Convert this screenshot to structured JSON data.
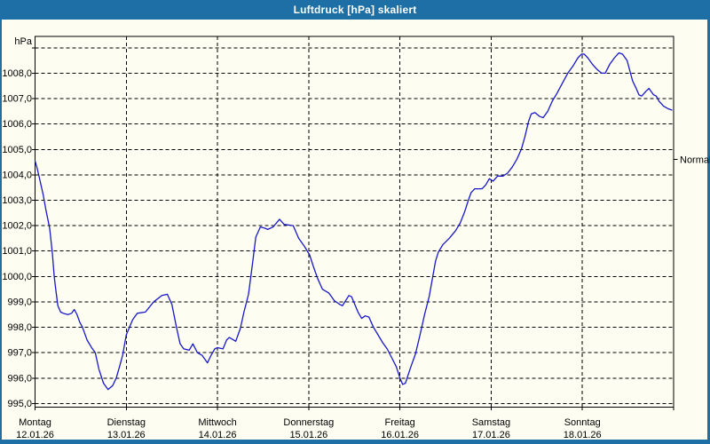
{
  "window": {
    "title": "Luftdruck [hPa] skaliert"
  },
  "colors": {
    "titlebar_bg": "#1d6fa5",
    "window_border": "#1d6fa5",
    "chart_bg": "#fdfdf2",
    "plot_bg": "#fdfdf2",
    "grid": "#000000",
    "text": "#000000",
    "line": "#1818c8"
  },
  "chart_data": {
    "type": "line",
    "title": "Luftdruck [hPa] skaliert",
    "ylabel": "hPa",
    "ylim": [
      995,
      1009
    ],
    "grid": "dashed",
    "y_ticks": [
      {
        "value": 995,
        "label": "995,0"
      },
      {
        "value": 996,
        "label": "996,0"
      },
      {
        "value": 997,
        "label": "997,0"
      },
      {
        "value": 998,
        "label": "998,0"
      },
      {
        "value": 999,
        "label": "999,0"
      },
      {
        "value": 1000,
        "label": "1000,0"
      },
      {
        "value": 1001,
        "label": "1001,0"
      },
      {
        "value": 1002,
        "label": "1002,0"
      },
      {
        "value": 1003,
        "label": "1003,0"
      },
      {
        "value": 1004,
        "label": "1004,0"
      },
      {
        "value": 1005,
        "label": "1005,0"
      },
      {
        "value": 1006,
        "label": "1006,0"
      },
      {
        "value": 1007,
        "label": "1007,0"
      },
      {
        "value": 1008,
        "label": "1008,0"
      }
    ],
    "unlabeled_top_gridline": 1009,
    "x_days": [
      {
        "name": "Montag",
        "date": "12.01.26"
      },
      {
        "name": "Dienstag",
        "date": "13.01.26"
      },
      {
        "name": "Mittwoch",
        "date": "14.01.26"
      },
      {
        "name": "Donnerstag",
        "date": "15.01.26"
      },
      {
        "name": "Freitag",
        "date": "16.01.26"
      },
      {
        "name": "Samstag",
        "date": "17.01.26"
      },
      {
        "name": "Sonntag",
        "date": "18.01.26"
      }
    ],
    "normal_marker": {
      "label": "Normal",
      "value": 1004.6
    },
    "series": [
      {
        "name": "Luftdruck",
        "x_unit": "days_from_monday_00h",
        "y_unit": "hPa",
        "x": [
          0.0,
          0.02,
          0.04,
          0.09,
          0.12,
          0.16,
          0.19,
          0.21,
          0.23,
          0.25,
          0.28,
          0.31,
          0.36,
          0.4,
          0.43,
          0.46,
          0.49,
          0.52,
          0.57,
          0.62,
          0.66,
          0.7,
          0.75,
          0.8,
          0.85,
          0.89,
          0.93,
          0.96,
          1.0,
          1.07,
          1.12,
          1.21,
          1.3,
          1.39,
          1.45,
          1.5,
          1.55,
          1.59,
          1.63,
          1.69,
          1.73,
          1.78,
          1.83,
          1.89,
          1.93,
          1.97,
          2.0,
          2.06,
          2.1,
          2.13,
          2.2,
          2.25,
          2.29,
          2.34,
          2.38,
          2.42,
          2.47,
          2.52,
          2.55,
          2.61,
          2.68,
          2.73,
          2.83,
          2.89,
          2.95,
          3.01,
          3.05,
          3.1,
          3.15,
          3.22,
          3.28,
          3.34,
          3.37,
          3.44,
          3.47,
          3.54,
          3.58,
          3.62,
          3.66,
          3.71,
          3.76,
          3.81,
          3.86,
          3.91,
          3.96,
          4.0,
          4.03,
          4.06,
          4.12,
          4.17,
          4.22,
          4.27,
          4.32,
          4.36,
          4.39,
          4.42,
          4.47,
          4.54,
          4.61,
          4.66,
          4.71,
          4.75,
          4.78,
          4.82,
          4.9,
          4.94,
          4.98,
          5.02,
          5.07,
          5.13,
          5.18,
          5.23,
          5.28,
          5.33,
          5.37,
          5.41,
          5.44,
          5.48,
          5.53,
          5.57,
          5.62,
          5.67,
          5.72,
          5.78,
          5.84,
          5.9,
          5.95,
          5.99,
          6.02,
          6.06,
          6.11,
          6.16,
          6.21,
          6.25,
          6.3,
          6.35,
          6.4,
          6.44,
          6.49,
          6.52,
          6.55,
          6.59,
          6.62,
          6.65,
          6.7,
          6.73,
          6.78,
          6.81,
          6.84,
          6.89,
          6.94,
          6.98
        ],
        "y": [
          1004.55,
          1004.3,
          1004.0,
          1003.2,
          1002.6,
          1001.9,
          1000.9,
          1000.0,
          999.4,
          998.85,
          998.6,
          998.55,
          998.5,
          998.55,
          998.7,
          998.5,
          998.2,
          998.0,
          997.5,
          997.2,
          997.0,
          996.35,
          995.8,
          995.55,
          995.7,
          996.0,
          996.5,
          996.9,
          997.7,
          998.3,
          998.55,
          998.6,
          999.0,
          999.25,
          999.3,
          998.9,
          998.0,
          997.35,
          997.15,
          997.1,
          997.35,
          997.0,
          996.9,
          996.6,
          996.9,
          997.15,
          997.2,
          997.15,
          997.5,
          997.6,
          997.45,
          997.95,
          998.6,
          999.3,
          1000.4,
          1001.55,
          1001.95,
          1001.9,
          1001.85,
          1001.95,
          1002.25,
          1002.05,
          1002.0,
          1001.5,
          1001.2,
          1000.85,
          1000.4,
          999.9,
          999.5,
          999.35,
          999.05,
          998.9,
          998.85,
          999.25,
          999.2,
          998.6,
          998.35,
          998.45,
          998.4,
          998.0,
          997.7,
          997.4,
          997.15,
          996.8,
          996.45,
          996.0,
          995.75,
          995.8,
          996.45,
          996.95,
          997.7,
          998.5,
          999.2,
          1000.0,
          1000.6,
          1000.95,
          1001.25,
          1001.5,
          1001.8,
          1002.1,
          1002.55,
          1003.0,
          1003.3,
          1003.45,
          1003.45,
          1003.6,
          1003.85,
          1003.75,
          1003.95,
          1003.95,
          1004.07,
          1004.3,
          1004.6,
          1005.0,
          1005.5,
          1006.1,
          1006.4,
          1006.45,
          1006.3,
          1006.25,
          1006.5,
          1006.9,
          1007.2,
          1007.6,
          1008.0,
          1008.3,
          1008.6,
          1008.75,
          1008.75,
          1008.6,
          1008.35,
          1008.15,
          1008.0,
          1008.0,
          1008.35,
          1008.6,
          1008.8,
          1008.75,
          1008.5,
          1008.1,
          1007.7,
          1007.4,
          1007.15,
          1007.1,
          1007.3,
          1007.4,
          1007.15,
          1007.1,
          1006.9,
          1006.7,
          1006.6,
          1006.55
        ]
      }
    ]
  }
}
